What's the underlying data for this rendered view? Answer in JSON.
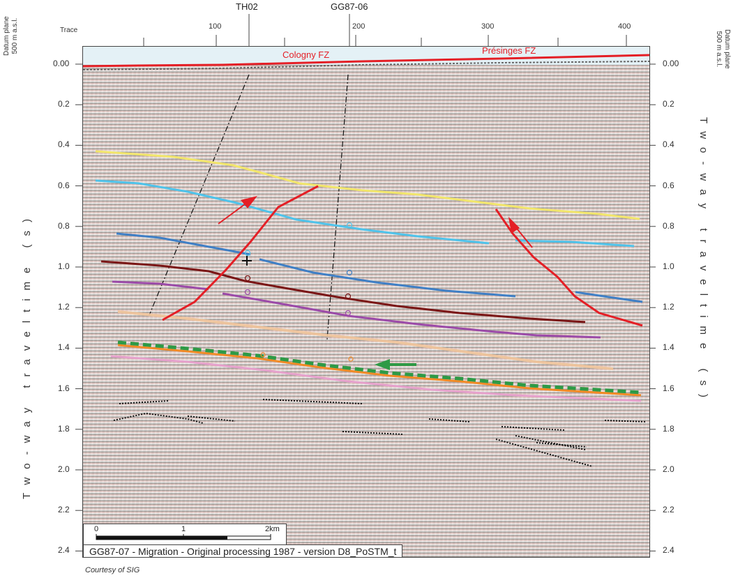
{
  "top_axis": {
    "trace_label": "Trace",
    "traces": [
      "100",
      "200",
      "300",
      "400"
    ]
  },
  "wells": [
    "TH02",
    "GG87-06"
  ],
  "datum_label": [
    "Datum plane",
    "500 m a.s.l."
  ],
  "y_axis": {
    "title": "Two-way traveltime (s)",
    "ticks": [
      "0.00",
      "0.2",
      "0.4",
      "0.6",
      "0.8",
      "1.0",
      "1.2",
      "1.4",
      "1.6",
      "1.8",
      "2.0",
      "2.2",
      "2.4"
    ]
  },
  "faults": {
    "left": "Cologny FZ",
    "right": "Présinges FZ"
  },
  "scale_bar": {
    "zero": "0",
    "one": "1",
    "two": "2km"
  },
  "caption": "GG87-07 - Migration - Original processing 1987 - version D8_PoSTM_t",
  "credit": "Courtesy of SIG",
  "colors": {
    "fault": "#e41f26",
    "horizon_yellow": "#f2e66b",
    "horizon_cyan": "#4fc3ea",
    "horizon_blue": "#3f7fc5",
    "horizon_darkred": "#7a1616",
    "horizon_purple": "#9b4aa8",
    "horizon_peach": "#f1c49a",
    "horizon_orange": "#f28a25",
    "horizon_green": "#2e9a46",
    "horizon_pink": "#e6a1cc"
  }
}
